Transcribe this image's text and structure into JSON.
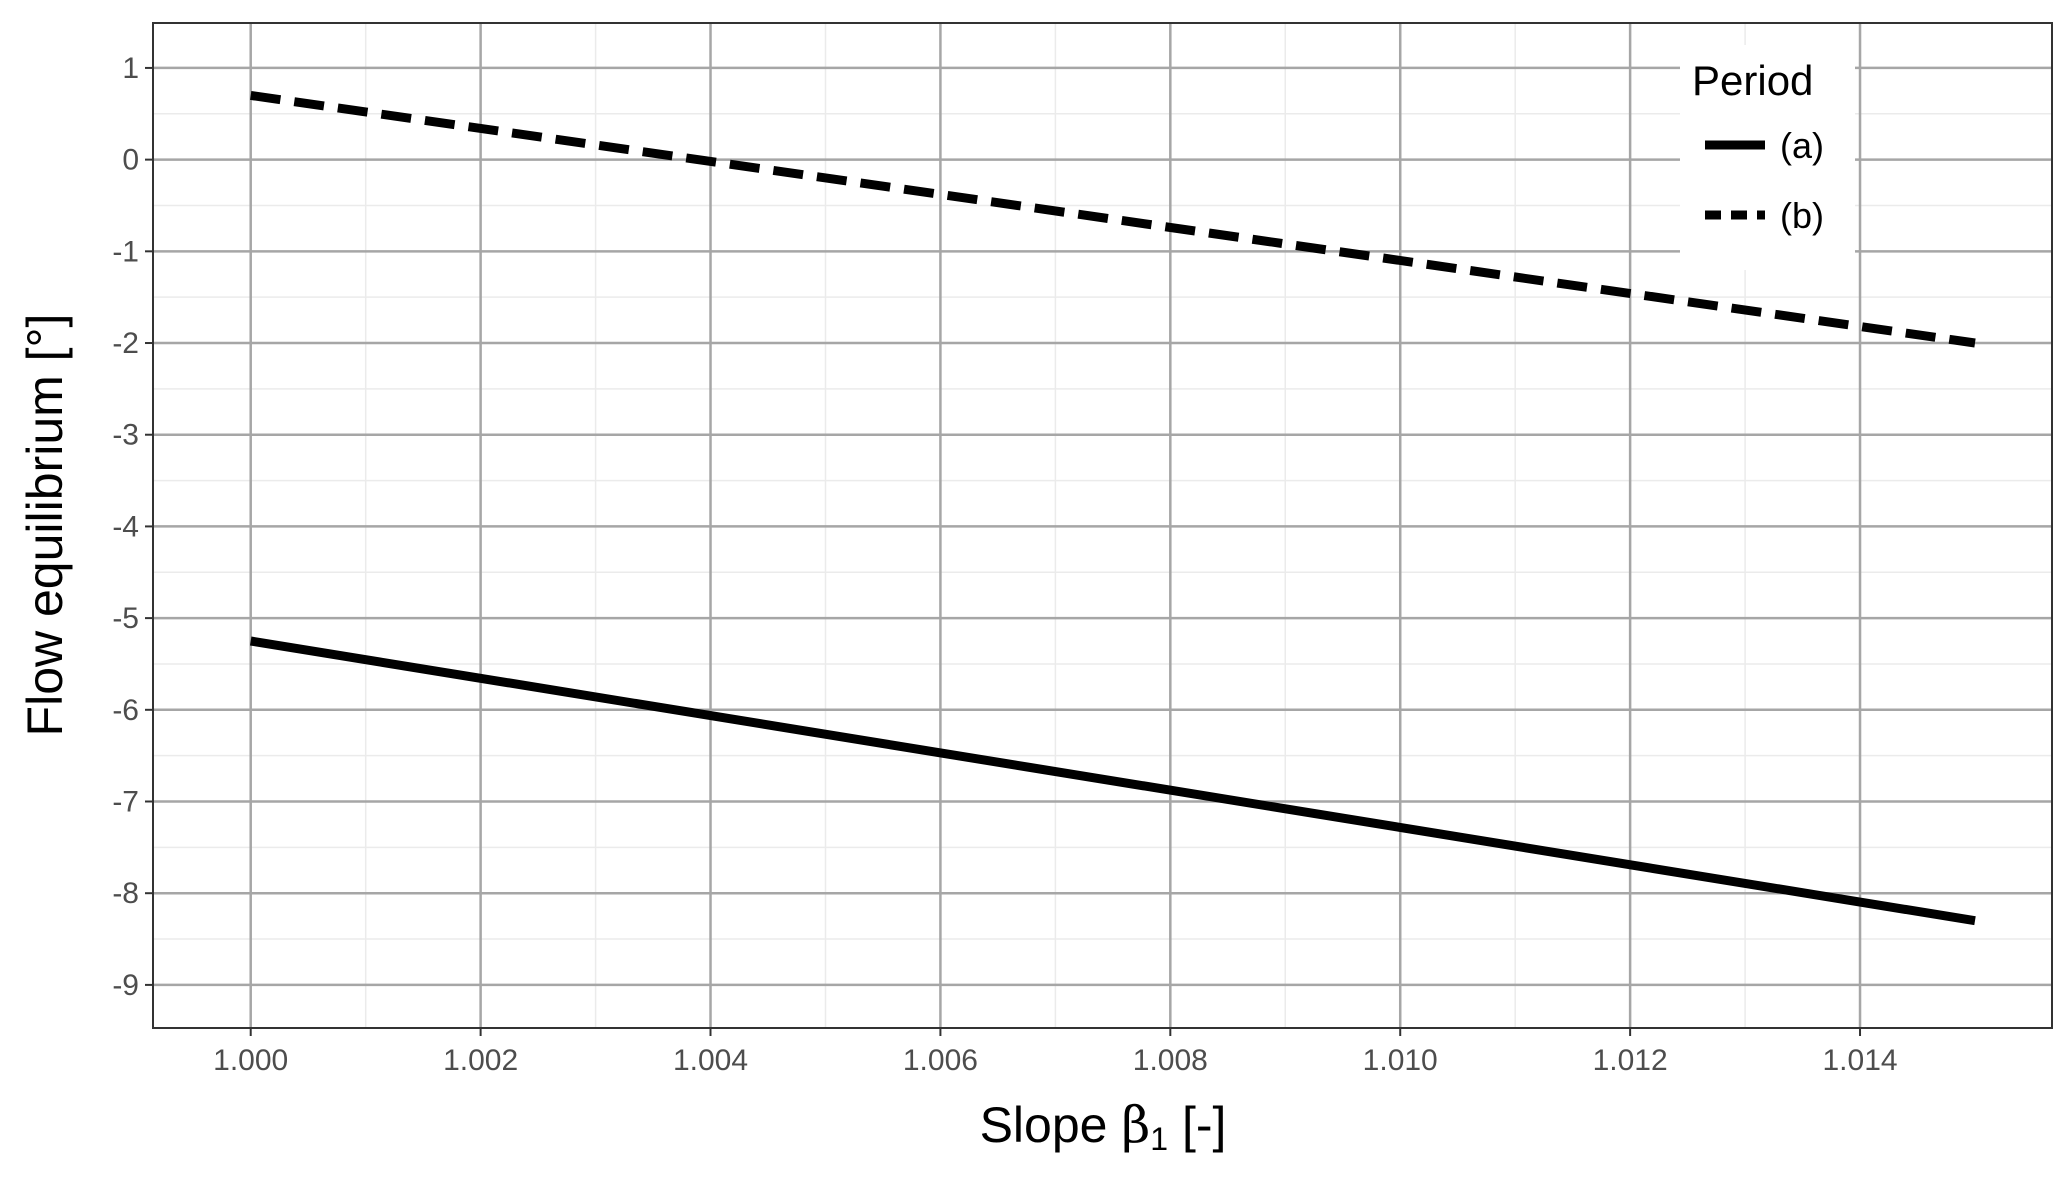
{
  "chart_data": {
    "type": "line",
    "xlabel": "Slope",
    "xlabel_symbol": "β",
    "xlabel_subscript": "1",
    "xlabel_unit": "[-]",
    "ylabel": "Flow equilibrium [°]",
    "xlim": [
      0.99915,
      1.01567
    ],
    "ylim": [
      -9.47,
      1.49
    ],
    "x_ticks": [
      1.0,
      1.002,
      1.004,
      1.006,
      1.008,
      1.01,
      1.012,
      1.014
    ],
    "x_tick_labels": [
      "1.000",
      "1.002",
      "1.004",
      "1.006",
      "1.008",
      "1.010",
      "1.012",
      "1.014"
    ],
    "y_ticks": [
      1,
      0,
      -1,
      -2,
      -3,
      -4,
      -5,
      -6,
      -7,
      -8,
      -9
    ],
    "y_tick_labels": [
      "1",
      "0",
      "-1",
      "-2",
      "-3",
      "-4",
      "-5",
      "-6",
      "-7",
      "-8",
      "-9"
    ],
    "grid": true,
    "legend": {
      "title": "Period",
      "position": "top-right"
    },
    "series": [
      {
        "name": "(a)",
        "linetype": "solid",
        "x": [
          1.0,
          1.015
        ],
        "y": [
          -5.25,
          -8.3
        ]
      },
      {
        "name": "(b)",
        "linetype": "dashed",
        "x": [
          1.0,
          1.015
        ],
        "y": [
          0.7,
          -2.0
        ]
      }
    ]
  }
}
